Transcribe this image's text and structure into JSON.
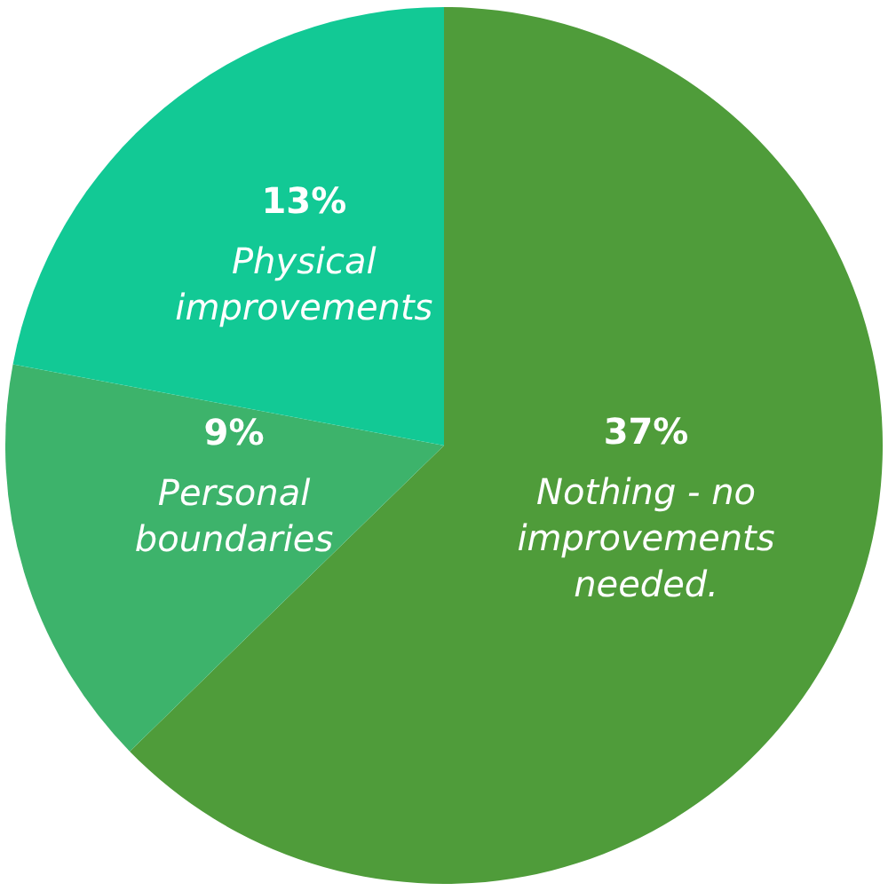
{
  "chart_data": {
    "type": "pie",
    "categories": [
      "Nothing - no improvements needed.",
      "Personal boundaries",
      "Physical improvements"
    ],
    "values": [
      37,
      9,
      13
    ],
    "value_labels": [
      "37%",
      "9%",
      "13%"
    ],
    "colors": [
      "#4f9c3a",
      "#3db36b",
      "#12c995"
    ]
  }
}
